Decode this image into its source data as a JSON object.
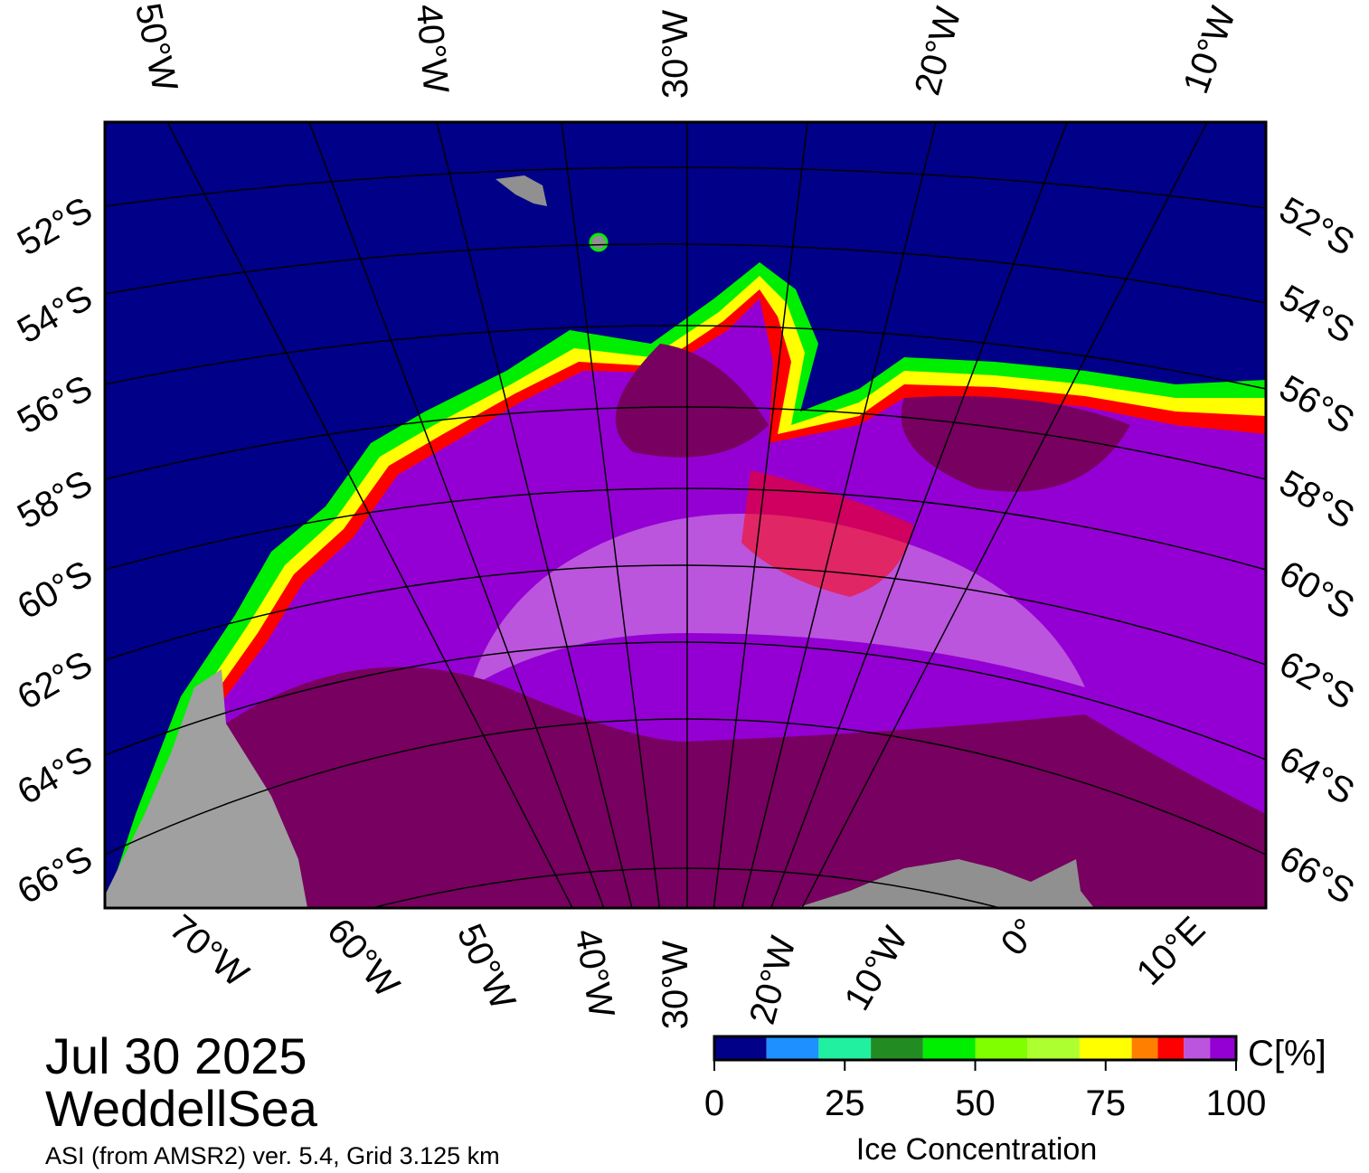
{
  "map": {
    "top_lon_labels": [
      "50°W",
      "40°W",
      "30°W",
      "20°W",
      "10°W"
    ],
    "left_lat_labels": [
      "52°S",
      "54°S",
      "56°S",
      "58°S",
      "60°S",
      "62°S",
      "64°S",
      "66°S"
    ],
    "right_lat_labels": [
      "52°S",
      "54°S",
      "56°S",
      "58°S",
      "60°S",
      "62°S",
      "64°S",
      "66°S"
    ],
    "bottom_lon_labels": [
      "70°W",
      "60°W",
      "50°W",
      "40°W",
      "30°W",
      "20°W",
      "10°W",
      "0°",
      "10°E"
    ]
  },
  "caption": {
    "date": "Jul 30 2025",
    "region": "WeddellSea",
    "source": "ASI (from AMSR2) ver. 5.4,  Grid 3.125 km"
  },
  "colorbar": {
    "unit": "C[%]",
    "label": "Ice Concentration",
    "bounds": [
      0,
      10,
      20,
      30,
      40,
      50,
      60,
      70,
      80,
      85,
      90,
      95,
      100
    ],
    "colors": [
      "#000088",
      "#1e90ff",
      "#20f0a0",
      "#228b22",
      "#00ee00",
      "#7fff00",
      "#adff2f",
      "#ffff00",
      "#ff8000",
      "#ff0000",
      "#bb55dd",
      "#9400d3"
    ],
    "ticks": [
      0,
      25,
      50,
      75,
      100
    ]
  }
}
